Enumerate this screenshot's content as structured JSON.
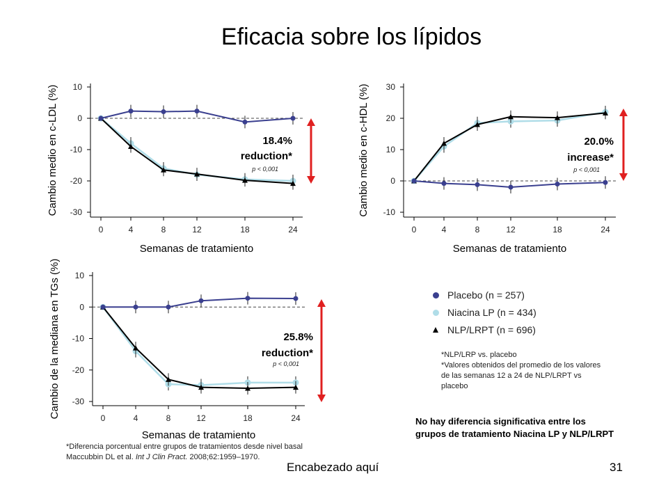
{
  "slide": {
    "title": "Eficacia sobre los lípidos",
    "footer_text": "Encabezado aquí",
    "page_number": "31"
  },
  "legend": {
    "items": [
      {
        "label": "Placebo (n = 257)",
        "color": "#3a3f8f",
        "marker": "circle"
      },
      {
        "label": "Niacina LP (n = 434)",
        "color": "#b0dde8",
        "marker": "circle"
      },
      {
        "label": "NLP/LRPT (n = 696)",
        "color": "#000000",
        "marker": "triangle"
      }
    ],
    "note_1": "*NLP/LRP vs. placebo",
    "note_2": "*Valores obtenidos del promedio de los valores de las semanas 12 a 24 de NLP/LRPT vs placebo"
  },
  "conclusion": "No hay diferencia significativa entre los grupos de tratamiento Niacina LP y NLP/LRPT",
  "footnote": {
    "line_1": "*Diferencia  porcentual entre grupos de tratamientos desde nivel basal",
    "citation_authors": "Maccubbin DL et al. ",
    "citation_journal": "Int J Clin Pract.",
    "citation_rest": " 2008;62:1959–1970."
  },
  "colors": {
    "placebo": "#3a3f8f",
    "niacina": "#b0dde8",
    "nlp": "#000000",
    "arrow": "#e02020"
  },
  "chart_data": [
    {
      "type": "line",
      "id": "ldl",
      "ylabel": "Cambio medio en c-LDL (%)",
      "xlabel": "Semanas de tratamiento",
      "x": [
        0,
        4,
        8,
        12,
        18,
        24
      ],
      "ylim": [
        -30,
        10
      ],
      "yticks": [
        10,
        0,
        -10,
        -20,
        -30
      ],
      "series": [
        {
          "name": "Placebo",
          "values": [
            0,
            2.3,
            2.1,
            2.3,
            -1.2,
            0
          ]
        },
        {
          "name": "Niacina LP",
          "values": [
            0,
            -8,
            -16,
            -18,
            -19.5,
            -20
          ]
        },
        {
          "name": "NLP/LRPT",
          "values": [
            0,
            -9,
            -16.5,
            -17.8,
            -19.8,
            -20.8
          ]
        }
      ],
      "annotation": {
        "line1": "18.4%",
        "line2": "reduction*",
        "p": "p < 0,001"
      }
    },
    {
      "type": "line",
      "id": "hdl",
      "ylabel": "Cambio medio en c-HDL (%)",
      "xlabel": "Semanas de tratamiento",
      "x": [
        0,
        4,
        8,
        12,
        18,
        24
      ],
      "ylim": [
        -10,
        30
      ],
      "yticks": [
        30,
        20,
        10,
        0,
        -10
      ],
      "series": [
        {
          "name": "Placebo",
          "values": [
            0,
            -0.8,
            -1.2,
            -2,
            -1,
            -0.5
          ]
        },
        {
          "name": "Niacina LP",
          "values": [
            0,
            11,
            18.5,
            19,
            19.3,
            22
          ]
        },
        {
          "name": "NLP/LRPT",
          "values": [
            0,
            12,
            18,
            20.5,
            20.2,
            21.7
          ]
        }
      ],
      "annotation": {
        "line1": "20.0%",
        "line2": "increase*",
        "p": "p < 0,001"
      }
    },
    {
      "type": "line",
      "id": "tg",
      "ylabel": "Cambio de la mediana en TGs (%)",
      "xlabel": "Semanas de tratamiento",
      "x": [
        0,
        4,
        8,
        12,
        18,
        24
      ],
      "ylim": [
        -30,
        10
      ],
      "yticks": [
        10,
        0,
        -10,
        -20,
        -30
      ],
      "series": [
        {
          "name": "Placebo",
          "values": [
            0,
            0,
            0,
            2,
            2.8,
            2.7
          ]
        },
        {
          "name": "Niacina LP",
          "values": [
            0,
            -14,
            -24.5,
            -24.8,
            -24,
            -24
          ]
        },
        {
          "name": "NLP/LRPT",
          "values": [
            0,
            -13,
            -23,
            -25.5,
            -25.8,
            -25.5
          ]
        }
      ],
      "annotation": {
        "line1": "25.8%",
        "line2": "reduction*",
        "p": "p < 0,001"
      }
    }
  ]
}
